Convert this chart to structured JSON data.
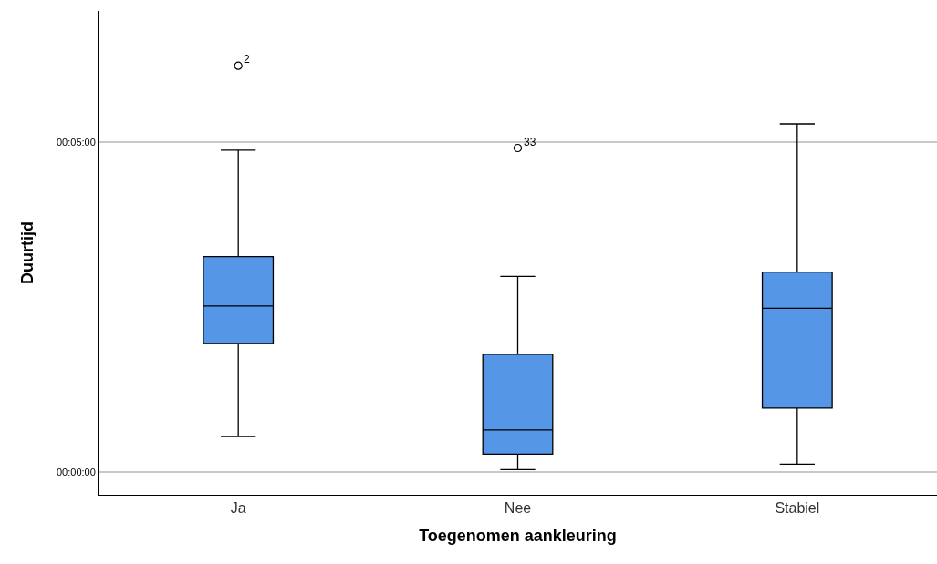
{
  "chart_data": {
    "type": "box",
    "xlabel": "Toegenomen aankleuring",
    "ylabel": "Duurtijd",
    "categories": [
      "Ja",
      "Nee",
      "Stabiel"
    ],
    "color": "#5596e6",
    "boxes": [
      {
        "low": 32,
        "q1": 117,
        "median": 151,
        "q3": 196,
        "high": 293,
        "outliers": [
          370
        ]
      },
      {
        "low": 2,
        "q1": 16,
        "median": 38,
        "q3": 107,
        "high": 178,
        "outliers": [
          295
        ]
      },
      {
        "low": 7,
        "q1": 58,
        "median": 149,
        "q3": 182,
        "high": 317
      }
    ],
    "ylim": [
      -21,
      420
    ],
    "yticks": [
      {
        "value": 0,
        "label": "00:00:00"
      },
      {
        "value": 300,
        "label": "00:05:00"
      }
    ],
    "grid": "y",
    "annotations": [
      "2",
      "33"
    ]
  }
}
